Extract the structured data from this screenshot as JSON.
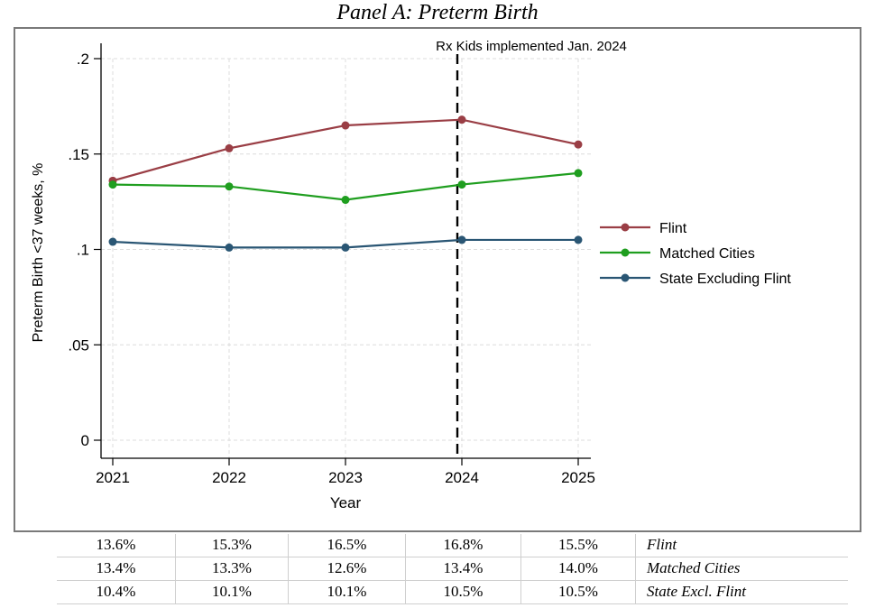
{
  "title": "Panel A: Preterm Birth",
  "chart_data": {
    "type": "line",
    "title": "Panel A: Preterm Birth",
    "x": [
      2021,
      2022,
      2023,
      2024,
      2025
    ],
    "xlabel": "Year",
    "ylabel": "Preterm Birth <37 weeks, %",
    "ylim": [
      0,
      0.2
    ],
    "yticks": [
      0,
      0.05,
      0.1,
      0.15,
      0.2
    ],
    "ytick_labels": [
      "0",
      ".05",
      ".1",
      ".15",
      ".2"
    ],
    "grid": "dashed",
    "legend_position": "right",
    "series": [
      {
        "name": "Flint",
        "color": "#9a3e45",
        "values": [
          0.136,
          0.153,
          0.165,
          0.168,
          0.155
        ]
      },
      {
        "name": "Matched Cities",
        "color": "#1f9e1f",
        "values": [
          0.134,
          0.133,
          0.126,
          0.134,
          0.14
        ]
      },
      {
        "name": "State Excluding Flint",
        "color": "#2a5674",
        "values": [
          0.104,
          0.101,
          0.101,
          0.105,
          0.105
        ]
      }
    ],
    "vline": {
      "x": 2024,
      "label": "Rx Kids implemented Jan. 2024",
      "style": "dashed",
      "color": "#000000"
    }
  },
  "table": {
    "rows": [
      {
        "values": [
          "13.6%",
          "15.3%",
          "16.5%",
          "16.8%",
          "15.5%"
        ],
        "label": "Flint"
      },
      {
        "values": [
          "13.4%",
          "13.3%",
          "12.6%",
          "13.4%",
          "14.0%"
        ],
        "label": "Matched Cities"
      },
      {
        "values": [
          "10.4%",
          "10.1%",
          "10.1%",
          "10.5%",
          "10.5%"
        ],
        "label": "State Excl. Flint"
      }
    ]
  }
}
